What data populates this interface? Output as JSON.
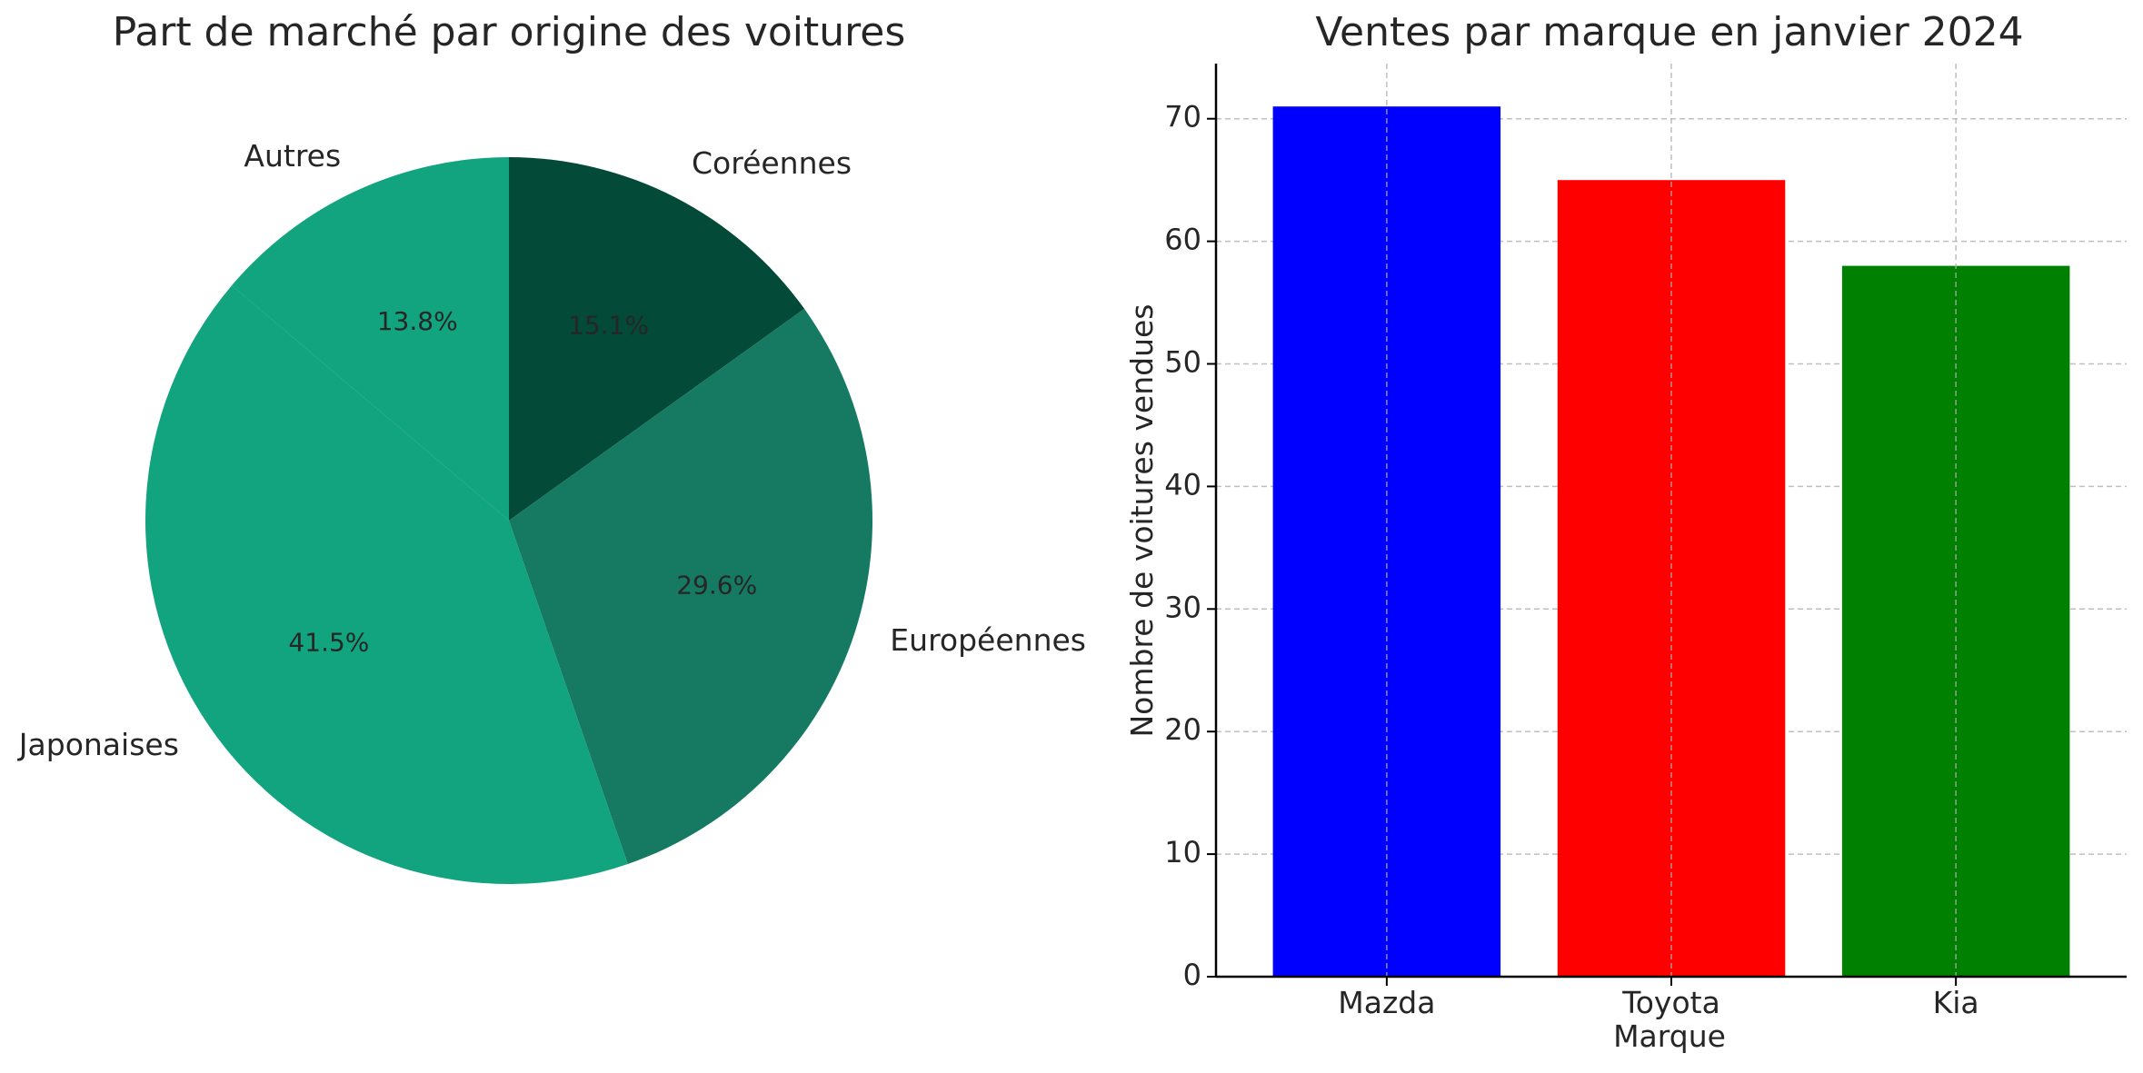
{
  "chart_data": [
    {
      "type": "pie",
      "title": "Part de marché par origine des voitures",
      "start_angle_deg": 90,
      "direction": "clockwise",
      "slices": [
        {
          "label": "Coréennes",
          "value": 15.1,
          "pct_label": "15.1%",
          "color": "#034a38"
        },
        {
          "label": "Européennes",
          "value": 29.6,
          "pct_label": "29.6%",
          "color": "#167a63"
        },
        {
          "label": "Japonaises",
          "value": 41.5,
          "pct_label": "41.5%",
          "color": "#12a37f"
        },
        {
          "label": "Autres",
          "value": 13.8,
          "pct_label": "13.8%",
          "color": "#12a37f"
        }
      ]
    },
    {
      "type": "bar",
      "title": "Ventes par marque en janvier 2024",
      "xlabel": "Marque",
      "ylabel": "Nombre de voitures vendues",
      "categories": [
        "Mazda",
        "Toyota",
        "Kia"
      ],
      "values": [
        71,
        65,
        58
      ],
      "colors": [
        "#0000ff",
        "#ff0000",
        "#008000"
      ],
      "ylim": [
        0,
        74.5
      ],
      "yticks": [
        0,
        10,
        20,
        30,
        40,
        50,
        60,
        70
      ],
      "grid": true
    }
  ]
}
